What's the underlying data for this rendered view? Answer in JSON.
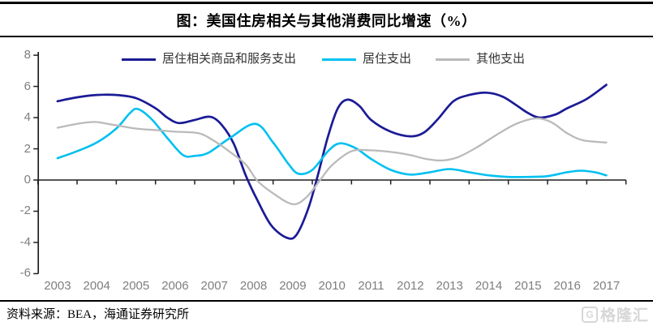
{
  "header": {
    "title": "图：美国住房相关与其他消费同比增速（%）"
  },
  "legend": [
    {
      "label": "居住相关商品和服务支出",
      "color": "#1b1b96"
    },
    {
      "label": "居住支出",
      "color": "#00c0f0"
    },
    {
      "label": "其他支出",
      "color": "#bababa"
    }
  ],
  "footer": {
    "source": "资料来源：BEA，海通证券研究所",
    "watermark": "格隆汇"
  },
  "chart_data": {
    "type": "line",
    "title": "图：美国住房相关与其他消费同比增速（%）",
    "xlabel": "",
    "ylabel": "",
    "ylim": [
      -6,
      8
    ],
    "yticks": [
      8,
      6,
      4,
      2,
      0,
      -2,
      -4,
      -6
    ],
    "years": [
      2003,
      2004,
      2005,
      2006,
      2007,
      2008,
      2009,
      2010,
      2011,
      2012,
      2013,
      2014,
      2015,
      2016,
      2017
    ],
    "grid": false,
    "legend_position": "top",
    "series": [
      {
        "name": "居住相关商品和服务支出",
        "color": "#1b1b96",
        "points": [
          [
            2003,
            5.05
          ],
          [
            2003.5,
            5.3
          ],
          [
            2004,
            5.45
          ],
          [
            2004.5,
            5.45
          ],
          [
            2005,
            5.25
          ],
          [
            2005.5,
            4.6
          ],
          [
            2005.8,
            4.0
          ],
          [
            2006.1,
            3.65
          ],
          [
            2006.5,
            3.85
          ],
          [
            2006.9,
            4.05
          ],
          [
            2007.2,
            3.5
          ],
          [
            2007.5,
            2.3
          ],
          [
            2007.8,
            0.3
          ],
          [
            2008.1,
            -1.3
          ],
          [
            2008.45,
            -2.9
          ],
          [
            2008.85,
            -3.7
          ],
          [
            2009.1,
            -3.5
          ],
          [
            2009.4,
            -1.8
          ],
          [
            2009.65,
            0.4
          ],
          [
            2009.9,
            2.8
          ],
          [
            2010.15,
            4.6
          ],
          [
            2010.4,
            5.15
          ],
          [
            2010.7,
            4.75
          ],
          [
            2011,
            3.85
          ],
          [
            2011.5,
            3.1
          ],
          [
            2012,
            2.8
          ],
          [
            2012.35,
            3.05
          ],
          [
            2012.7,
            3.9
          ],
          [
            2013.1,
            5.05
          ],
          [
            2013.5,
            5.45
          ],
          [
            2013.95,
            5.6
          ],
          [
            2014.35,
            5.35
          ],
          [
            2014.7,
            4.8
          ],
          [
            2015,
            4.3
          ],
          [
            2015.3,
            4.0
          ],
          [
            2015.7,
            4.2
          ],
          [
            2016,
            4.6
          ],
          [
            2016.5,
            5.2
          ],
          [
            2017,
            6.1
          ]
        ]
      },
      {
        "name": "居住支出",
        "color": "#00c0f0",
        "points": [
          [
            2003,
            1.4
          ],
          [
            2003.5,
            1.85
          ],
          [
            2004,
            2.4
          ],
          [
            2004.5,
            3.3
          ],
          [
            2004.85,
            4.3
          ],
          [
            2005.05,
            4.55
          ],
          [
            2005.4,
            3.9
          ],
          [
            2005.8,
            2.7
          ],
          [
            2006.2,
            1.6
          ],
          [
            2006.5,
            1.55
          ],
          [
            2006.85,
            1.75
          ],
          [
            2007.4,
            2.7
          ],
          [
            2008.05,
            3.6
          ],
          [
            2008.5,
            2.4
          ],
          [
            2008.9,
            1.0
          ],
          [
            2009.15,
            0.4
          ],
          [
            2009.5,
            0.65
          ],
          [
            2009.9,
            1.85
          ],
          [
            2010.2,
            2.35
          ],
          [
            2010.6,
            2.05
          ],
          [
            2011,
            1.35
          ],
          [
            2011.5,
            0.65
          ],
          [
            2012,
            0.35
          ],
          [
            2012.5,
            0.5
          ],
          [
            2013,
            0.7
          ],
          [
            2013.5,
            0.5
          ],
          [
            2014,
            0.3
          ],
          [
            2014.5,
            0.2
          ],
          [
            2015,
            0.2
          ],
          [
            2015.5,
            0.25
          ],
          [
            2016,
            0.5
          ],
          [
            2016.35,
            0.6
          ],
          [
            2016.7,
            0.5
          ],
          [
            2017,
            0.3
          ]
        ]
      },
      {
        "name": "其他支出",
        "color": "#bababa",
        "points": [
          [
            2003,
            3.35
          ],
          [
            2003.5,
            3.6
          ],
          [
            2003.95,
            3.72
          ],
          [
            2004.4,
            3.55
          ],
          [
            2005,
            3.3
          ],
          [
            2005.5,
            3.2
          ],
          [
            2006,
            3.1
          ],
          [
            2006.6,
            3.0
          ],
          [
            2007,
            2.5
          ],
          [
            2007.4,
            1.8
          ],
          [
            2007.8,
            1.0
          ],
          [
            2008.1,
            -0.05
          ],
          [
            2008.5,
            -0.85
          ],
          [
            2009,
            -1.55
          ],
          [
            2009.35,
            -1.1
          ],
          [
            2009.7,
            0.0
          ],
          [
            2010,
            0.95
          ],
          [
            2010.5,
            1.85
          ],
          [
            2011,
            1.9
          ],
          [
            2011.5,
            1.8
          ],
          [
            2012,
            1.6
          ],
          [
            2012.4,
            1.35
          ],
          [
            2012.8,
            1.25
          ],
          [
            2013.2,
            1.45
          ],
          [
            2013.7,
            2.1
          ],
          [
            2014.2,
            2.9
          ],
          [
            2014.7,
            3.6
          ],
          [
            2015.2,
            3.95
          ],
          [
            2015.6,
            3.7
          ],
          [
            2016,
            3.0
          ],
          [
            2016.4,
            2.55
          ],
          [
            2017,
            2.4
          ]
        ]
      }
    ]
  }
}
